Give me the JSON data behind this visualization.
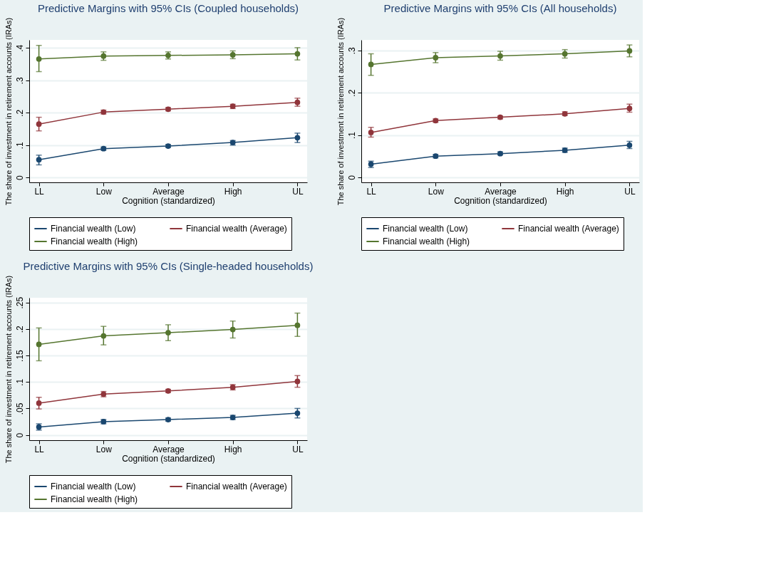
{
  "chart_data": [
    {
      "type": "line",
      "title": "Predictive Margins with 95% CIs (Coupled households)",
      "xlabel": "Cognition (standardized)",
      "ylabel": "The share of investment in retirement accounts (IRAs)",
      "categories": [
        "LL",
        "Low",
        "Average",
        "High",
        "UL"
      ],
      "ylim": [
        -0.015,
        0.425
      ],
      "yticks": [
        0,
        {
          "value": 0.1,
          "label": ".1"
        },
        {
          "value": 0.2,
          "label": ".2"
        },
        {
          "value": 0.3,
          "label": ".3"
        },
        {
          "value": 0.4,
          "label": ".4"
        }
      ],
      "grid": "y",
      "legend": "bottom",
      "marker": "circle",
      "line_style": "solid",
      "series": [
        {
          "name": "Financial wealth (Low)",
          "color": "#1a476f",
          "values": [
            0.055,
            0.089,
            0.097,
            0.108,
            0.123
          ],
          "errors": [
            [
              0.039,
              0.069
            ],
            [
              0.084,
              0.094
            ],
            [
              0.093,
              0.102
            ],
            [
              0.1,
              0.114
            ],
            [
              0.108,
              0.137
            ]
          ]
        },
        {
          "name": "Financial wealth (Average)",
          "color": "#90353b",
          "values": [
            0.165,
            0.202,
            0.211,
            0.22,
            0.232
          ],
          "errors": [
            [
              0.144,
              0.186
            ],
            [
              0.196,
              0.208
            ],
            [
              0.206,
              0.216
            ],
            [
              0.213,
              0.226
            ],
            [
              0.22,
              0.245
            ]
          ]
        },
        {
          "name": "Financial wealth (High)",
          "color": "#55752f",
          "values": [
            0.366,
            0.375,
            0.377,
            0.379,
            0.382
          ],
          "errors": [
            [
              0.327,
              0.408
            ],
            [
              0.362,
              0.388
            ],
            [
              0.366,
              0.388
            ],
            [
              0.367,
              0.391
            ],
            [
              0.363,
              0.401
            ]
          ]
        }
      ]
    },
    {
      "type": "line",
      "title": "Predictive Margins with 95% CIs (All households)",
      "xlabel": "Cognition (standardized)",
      "ylabel": "The share of investment in retirement accounts (IRAs)",
      "categories": [
        "LL",
        "Low",
        "Average",
        "High",
        "UL"
      ],
      "ylim": [
        -0.012,
        0.325
      ],
      "yticks": [
        0,
        {
          "value": 0.1,
          "label": ".1"
        },
        {
          "value": 0.2,
          "label": ".2"
        },
        {
          "value": 0.3,
          "label": ".3"
        }
      ],
      "grid": "y",
      "legend": "bottom",
      "marker": "circle",
      "line_style": "solid",
      "series": [
        {
          "name": "Financial wealth (Low)",
          "color": "#1a476f",
          "values": [
            0.031,
            0.05,
            0.056,
            0.064,
            0.076
          ],
          "errors": [
            [
              0.023,
              0.038
            ],
            [
              0.046,
              0.054
            ],
            [
              0.053,
              0.06
            ],
            [
              0.059,
              0.069
            ],
            [
              0.068,
              0.085
            ]
          ]
        },
        {
          "name": "Financial wealth (Average)",
          "color": "#90353b",
          "values": [
            0.106,
            0.134,
            0.142,
            0.15,
            0.163
          ],
          "errors": [
            [
              0.095,
              0.118
            ],
            [
              0.13,
              0.138
            ],
            [
              0.138,
              0.145
            ],
            [
              0.146,
              0.155
            ],
            [
              0.154,
              0.173
            ]
          ]
        },
        {
          "name": "Financial wealth (High)",
          "color": "#55752f",
          "values": [
            0.267,
            0.283,
            0.287,
            0.292,
            0.299
          ],
          "errors": [
            [
              0.241,
              0.292
            ],
            [
              0.271,
              0.295
            ],
            [
              0.277,
              0.298
            ],
            [
              0.282,
              0.302
            ],
            [
              0.285,
              0.313
            ]
          ]
        }
      ]
    },
    {
      "type": "line",
      "title": "Predictive Margins with 95% CIs (Single-headed households)",
      "xlabel": "Cognition (standardized)",
      "ylabel": "The share of investment in retirement accounts (IRAs)",
      "categories": [
        "LL",
        "Low",
        "Average",
        "High",
        "UL"
      ],
      "ylim": [
        -0.01,
        0.259
      ],
      "yticks": [
        0,
        {
          "value": 0.05,
          "label": ".05"
        },
        {
          "value": 0.1,
          "label": ".1"
        },
        {
          "value": 0.15,
          "label": ".15"
        },
        {
          "value": 0.2,
          "label": ".2"
        },
        {
          "value": 0.25,
          "label": ".25"
        }
      ],
      "grid": "y",
      "legend": "bottom",
      "marker": "circle",
      "line_style": "solid",
      "series": [
        {
          "name": "Financial wealth (Low)",
          "color": "#1a476f",
          "values": [
            0.015,
            0.025,
            0.029,
            0.033,
            0.041
          ],
          "errors": [
            [
              0.009,
              0.021
            ],
            [
              0.021,
              0.029
            ],
            [
              0.026,
              0.032
            ],
            [
              0.029,
              0.037
            ],
            [
              0.032,
              0.05
            ]
          ]
        },
        {
          "name": "Financial wealth (Average)",
          "color": "#90353b",
          "values": [
            0.06,
            0.077,
            0.083,
            0.09,
            0.101
          ],
          "errors": [
            [
              0.049,
              0.071
            ],
            [
              0.072,
              0.082
            ],
            [
              0.08,
              0.086
            ],
            [
              0.085,
              0.095
            ],
            [
              0.09,
              0.112
            ]
          ]
        },
        {
          "name": "Financial wealth (High)",
          "color": "#55752f",
          "values": [
            0.171,
            0.187,
            0.193,
            0.199,
            0.207
          ],
          "errors": [
            [
              0.14,
              0.202
            ],
            [
              0.17,
              0.205
            ],
            [
              0.178,
              0.208
            ],
            [
              0.183,
              0.215
            ],
            [
              0.186,
              0.23
            ]
          ]
        }
      ]
    }
  ]
}
